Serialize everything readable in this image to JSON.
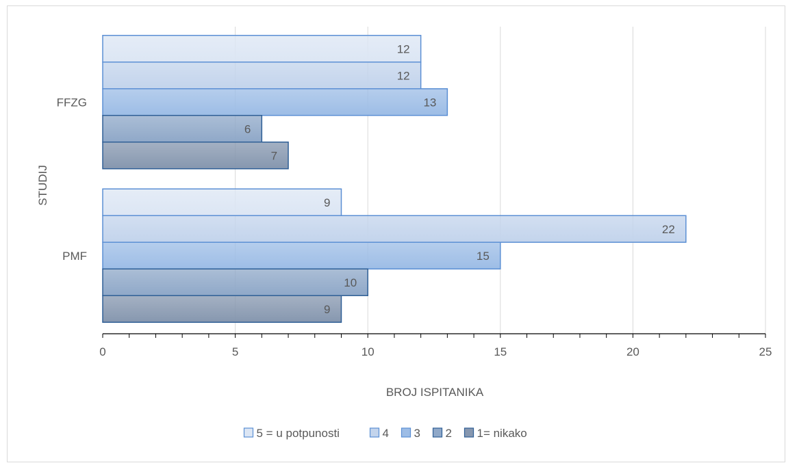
{
  "chart_data": {
    "type": "bar",
    "orientation": "horizontal",
    "title": "",
    "xlabel": "BROJ ISPITANIKA",
    "ylabel": "STUDIJ",
    "xlim": [
      0,
      25
    ],
    "x_ticks": [
      0,
      5,
      10,
      15,
      20,
      25
    ],
    "categories": [
      "FFZG",
      "PMF"
    ],
    "series": [
      {
        "name": "5 = u potpunosti",
        "values": [
          12,
          9
        ],
        "color": "#dce6f4"
      },
      {
        "name": "4",
        "values": [
          12,
          22
        ],
        "color": "#c3d4ec"
      },
      {
        "name": "3",
        "values": [
          13,
          15
        ],
        "color": "#9dbde6"
      },
      {
        "name": "2",
        "values": [
          6,
          10
        ],
        "color": "#8fa8c8"
      },
      {
        "name": "1= nikako",
        "values": [
          7,
          9
        ],
        "color": "#8697af"
      }
    ],
    "data_labels": true,
    "grid": "vertical",
    "legend_position": "bottom"
  }
}
